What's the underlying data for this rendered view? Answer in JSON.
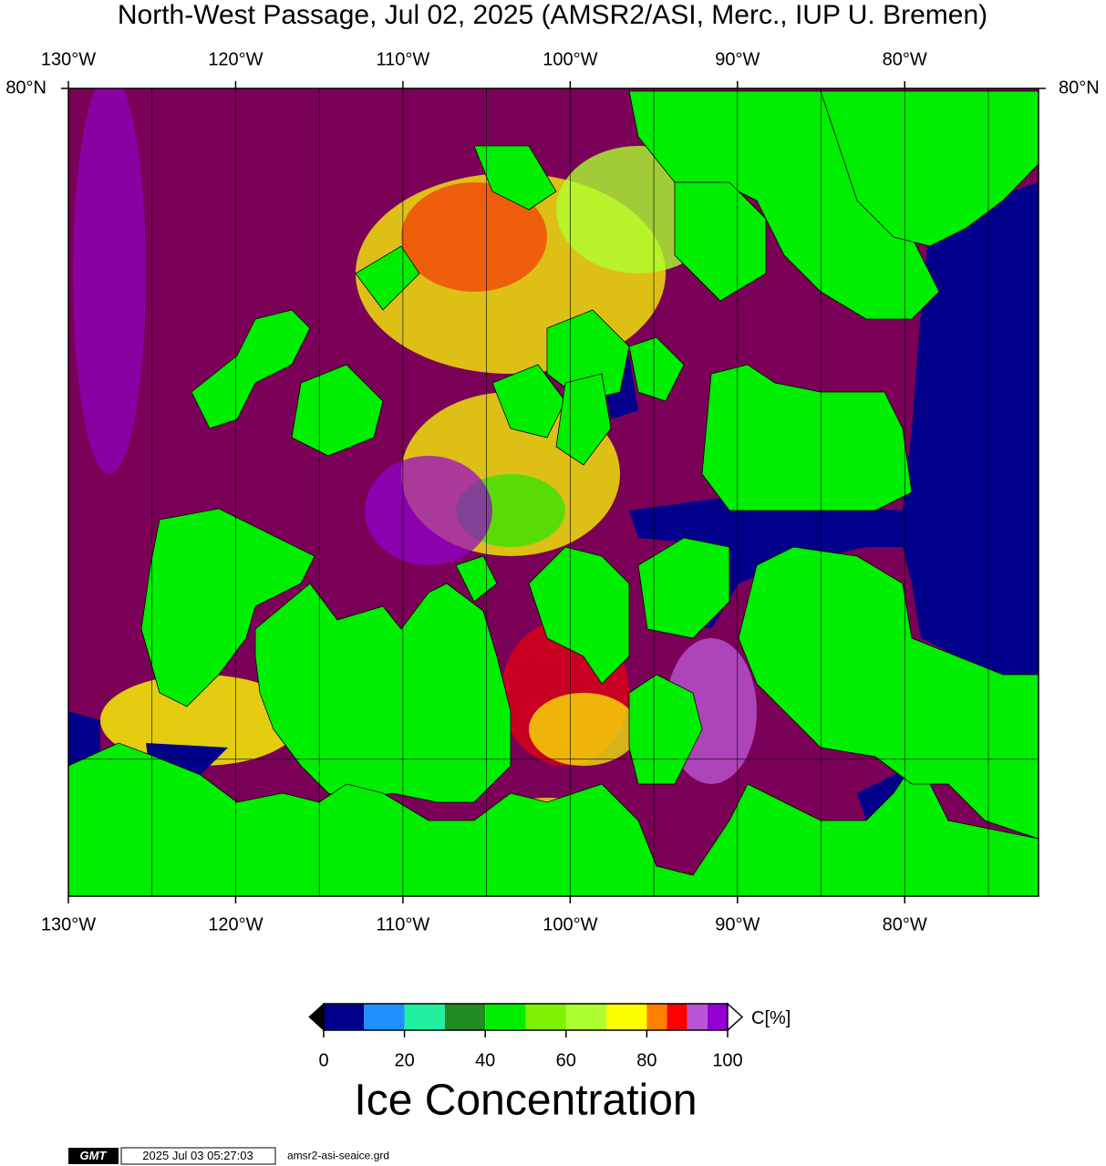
{
  "chart_data": {
    "type": "map",
    "title": "North-West Passage, Jul 02, 2025 (AMSR2/ASI, Merc., IUP U. Bremen)",
    "projection": "mercator",
    "xlim": [
      -130,
      -72
    ],
    "ylim": [
      67,
      80
    ],
    "xticks": [
      {
        "value": -130,
        "label": "130°W"
      },
      {
        "value": -120,
        "label": "120°W"
      },
      {
        "value": -110,
        "label": "110°W"
      },
      {
        "value": -100,
        "label": "100°W"
      },
      {
        "value": -90,
        "label": "90°W"
      },
      {
        "value": -80,
        "label": "80°W"
      }
    ],
    "yticks": [
      {
        "value": 80,
        "label": "80°N"
      }
    ],
    "xgrid": [
      -125,
      -115,
      -105,
      -95,
      -85,
      -75
    ],
    "ygrid": [
      70
    ],
    "colorbar": {
      "label": "C[%]",
      "title": "Ice Concentration",
      "lim": [
        0,
        100
      ],
      "ticks": [
        0,
        20,
        40,
        60,
        80,
        100
      ],
      "bins": [
        0,
        10,
        20,
        30,
        40,
        50,
        60,
        70,
        80,
        85,
        90,
        95,
        100
      ],
      "colors": [
        "#00008b",
        "#1e90ff",
        "#20f0a0",
        "#228b22",
        "#00ee00",
        "#7ff000",
        "#adff2f",
        "#ffff00",
        "#ff8000",
        "#ff0000",
        "#ba55d3",
        "#9400d3"
      ]
    }
  },
  "footer": {
    "logo": "GMT",
    "timestamp": "2025 Jul 03 05:27:03",
    "file": "amsr2-asi-seaice.grd"
  }
}
